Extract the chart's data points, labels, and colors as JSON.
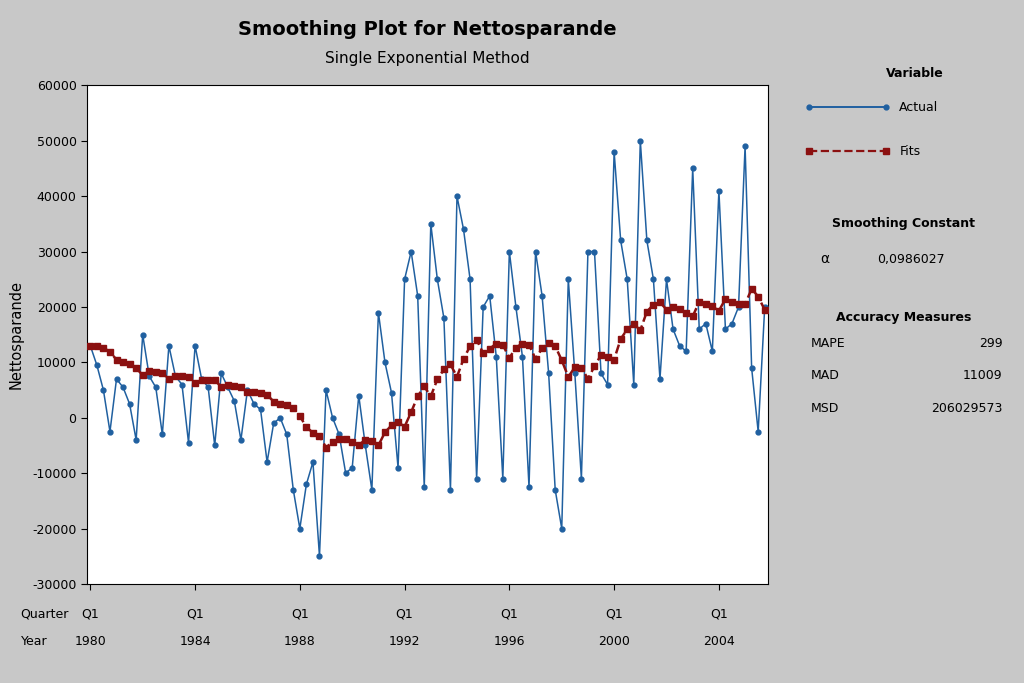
{
  "title_line1": "Smoothing Plot for Nettosparande",
  "title_line2": "Single Exponential Method",
  "ylabel": "Nettosparande",
  "alpha_label": "α",
  "alpha_value": "0,0986027",
  "mape": "299",
  "mad": "11009",
  "msd": "206029573",
  "bg_color": "#c8c8c8",
  "plot_bg_color": "#ffffff",
  "actual_color": "#2060a0",
  "fits_color": "#8b1010",
  "ylim": [
    -30000,
    60000
  ],
  "yticks": [
    -30000,
    -20000,
    -10000,
    0,
    10000,
    20000,
    30000,
    40000,
    50000,
    60000
  ],
  "x_tick_positions": [
    0,
    16,
    32,
    48,
    64,
    80,
    96
  ],
  "x_tick_quarters": [
    "Q1",
    "Q1",
    "Q1",
    "Q1",
    "Q1",
    "Q1",
    "Q1"
  ],
  "x_tick_years": [
    "1980",
    "1984",
    "1988",
    "1992",
    "1996",
    "2000",
    "2004"
  ],
  "actual_values": [
    13000,
    9500,
    5000,
    -2500,
    7000,
    5500,
    2500,
    -4000,
    15000,
    7500,
    5500,
    -3000,
    13000,
    7500,
    6000,
    -4500,
    13000,
    7000,
    5500,
    -5000,
    8000,
    5500,
    3000,
    -4000,
    5000,
    2500,
    1500,
    -8000,
    -1000,
    0,
    -3000,
    -13000,
    -20000,
    -12000,
    -8000,
    -25000,
    5000,
    0,
    -3000,
    -10000,
    -9000,
    4000,
    -5000,
    -13000,
    19000,
    10000,
    4500,
    -9000,
    25000,
    30000,
    22000,
    -12500,
    35000,
    25000,
    18000,
    -13000,
    40000,
    34000,
    25000,
    -11000,
    20000,
    22000,
    11000,
    -11000,
    30000,
    20000,
    11000,
    -12500,
    30000,
    22000,
    8000,
    -13000,
    -20000,
    25000,
    8000,
    -11000,
    30000,
    30000,
    8000,
    6000,
    48000,
    32000,
    25000,
    6000,
    50000,
    32000,
    25000,
    7000,
    25000,
    16000,
    13000,
    12000,
    45000,
    16000,
    17000,
    12000,
    41000,
    16000,
    17000,
    20000,
    49000,
    9000,
    -2500,
    20000
  ]
}
